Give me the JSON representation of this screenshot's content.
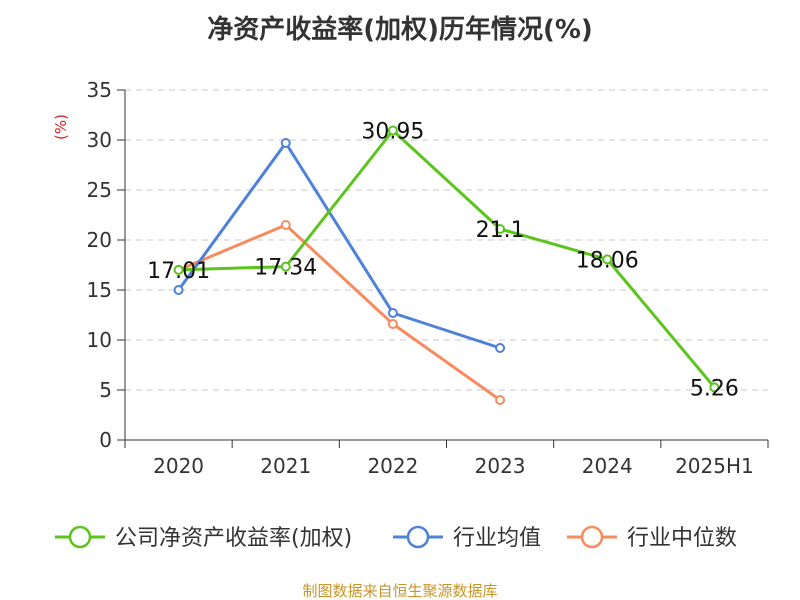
{
  "colors": {
    "company": "#5cc51d",
    "industry_avg": "#4e82d8",
    "industry_median": "#f78b5e",
    "grid": "#c8c8c8",
    "axis": "#333333",
    "unit": "#e02020",
    "source": "#c8962a"
  },
  "source_text": "制图数据来自恒生聚源数据库",
  "chart_data": {
    "type": "line",
    "title": "净资产收益率(加权)历年情况(%)",
    "ylabel": "(%)",
    "xlabel": "",
    "categories": [
      "2020",
      "2021",
      "2022",
      "2023",
      "2024",
      "2025H1"
    ],
    "ylim": [
      0,
      35
    ],
    "yticks": [
      "0",
      "5",
      "10",
      "15",
      "20",
      "25",
      "30",
      "35"
    ],
    "grid": true,
    "legend_position": "bottom",
    "series": [
      {
        "name": "公司净资产收益率(加权)",
        "color_key": "company",
        "values": [
          17.01,
          17.34,
          30.95,
          21.1,
          18.06,
          5.26
        ],
        "labels": [
          "17.01",
          "17.34",
          "30.95",
          "21.1",
          "18.06",
          "5.26"
        ]
      },
      {
        "name": "行业均值",
        "color_key": "industry_avg",
        "values": [
          15.0,
          29.7,
          12.7,
          9.2,
          null,
          null
        ]
      },
      {
        "name": "行业中位数",
        "color_key": "industry_median",
        "values": [
          17.0,
          21.5,
          11.6,
          4.0,
          null,
          null
        ]
      }
    ]
  }
}
